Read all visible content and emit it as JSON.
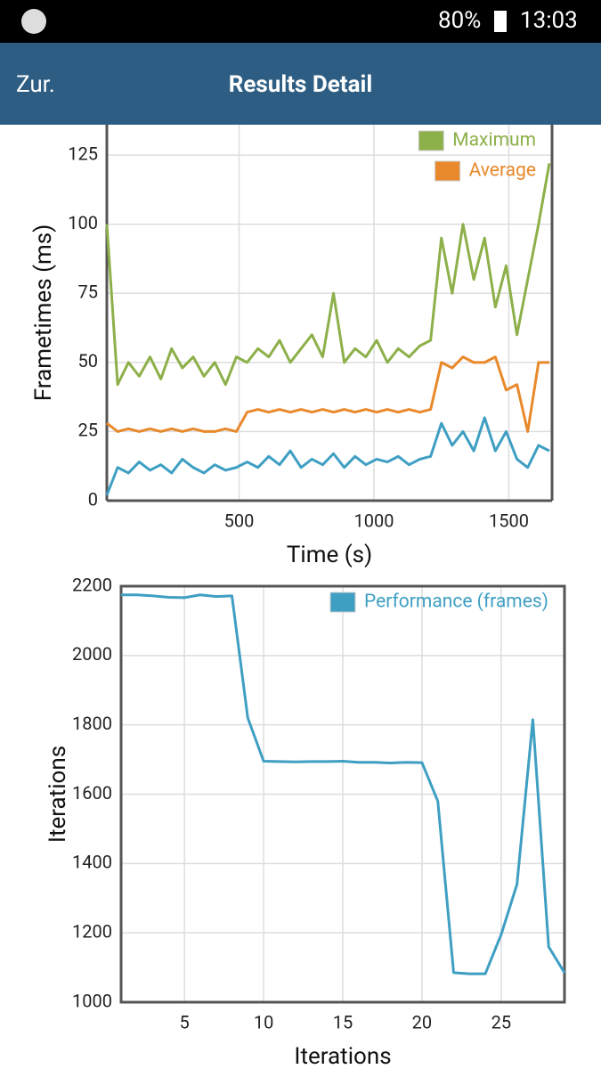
{
  "status_bar": {
    "battery": "80%",
    "time": "13:03"
  },
  "app_bar": {
    "back": "Zur.",
    "title": "Results Detail"
  },
  "chart_data": [
    {
      "type": "line",
      "xlabel": "Time (s)",
      "ylabel": "Frametimes (ms)",
      "xlim": [
        10,
        1660
      ],
      "ylim": [
        0,
        136
      ],
      "xticks": [
        500,
        1000,
        1500
      ],
      "yticks": [
        0,
        25,
        50,
        75,
        100,
        125
      ],
      "grid": true,
      "legend": "top-right",
      "x": [
        10,
        50,
        90,
        130,
        170,
        210,
        250,
        290,
        330,
        370,
        410,
        450,
        490,
        530,
        570,
        610,
        650,
        690,
        730,
        770,
        810,
        850,
        890,
        930,
        970,
        1010,
        1050,
        1090,
        1130,
        1170,
        1210,
        1250,
        1290,
        1330,
        1370,
        1410,
        1450,
        1490,
        1530,
        1570,
        1610,
        1650
      ],
      "series": [
        {
          "name": "Maximum",
          "color": "#8db04a",
          "values": [
            100,
            42,
            50,
            45,
            52,
            44,
            55,
            48,
            52,
            45,
            50,
            42,
            52,
            50,
            55,
            52,
            58,
            50,
            55,
            60,
            52,
            75,
            50,
            55,
            52,
            58,
            50,
            55,
            52,
            56,
            58,
            95,
            75,
            100,
            80,
            95,
            70,
            85,
            60,
            80,
            100,
            122
          ]
        },
        {
          "name": "Average",
          "color": "#e8892b",
          "values": [
            28,
            25,
            26,
            25,
            26,
            25,
            26,
            25,
            26,
            25,
            25,
            26,
            25,
            32,
            33,
            32,
            33,
            32,
            33,
            32,
            33,
            32,
            33,
            32,
            33,
            32,
            33,
            32,
            33,
            32,
            33,
            50,
            48,
            52,
            50,
            50,
            52,
            40,
            42,
            25,
            50,
            50
          ]
        },
        {
          "color": "#3f9fc3",
          "values": [
            2,
            12,
            10,
            14,
            11,
            13,
            10,
            15,
            12,
            10,
            13,
            11,
            12,
            14,
            12,
            16,
            13,
            18,
            12,
            15,
            13,
            17,
            12,
            16,
            13,
            15,
            14,
            16,
            13,
            15,
            16,
            28,
            20,
            25,
            18,
            30,
            18,
            25,
            15,
            12,
            20,
            18
          ]
        }
      ]
    },
    {
      "type": "line",
      "xlabel": "Iterations",
      "ylabel": "Iterations",
      "xlim": [
        1,
        29
      ],
      "ylim": [
        1000,
        2200
      ],
      "xticks": [
        5,
        10,
        15,
        20,
        25
      ],
      "yticks": [
        1000,
        1200,
        1400,
        1600,
        1800,
        2000,
        2200
      ],
      "grid": true,
      "legend": "top-right",
      "x": [
        1,
        2,
        3,
        4,
        5,
        6,
        7,
        8,
        9,
        10,
        11,
        12,
        13,
        14,
        15,
        16,
        17,
        18,
        19,
        20,
        21,
        22,
        23,
        24,
        25,
        26,
        27,
        28,
        29
      ],
      "series": [
        {
          "name": "Performance (frames)",
          "color": "#3f9fc3",
          "values": [
            2175,
            2175,
            2172,
            2168,
            2167,
            2175,
            2170,
            2172,
            1820,
            1695,
            1694,
            1693,
            1694,
            1694,
            1695,
            1692,
            1692,
            1690,
            1692,
            1691,
            1580,
            1085,
            1082,
            1082,
            1195,
            1340,
            1815,
            1160,
            1085
          ]
        }
      ]
    }
  ]
}
